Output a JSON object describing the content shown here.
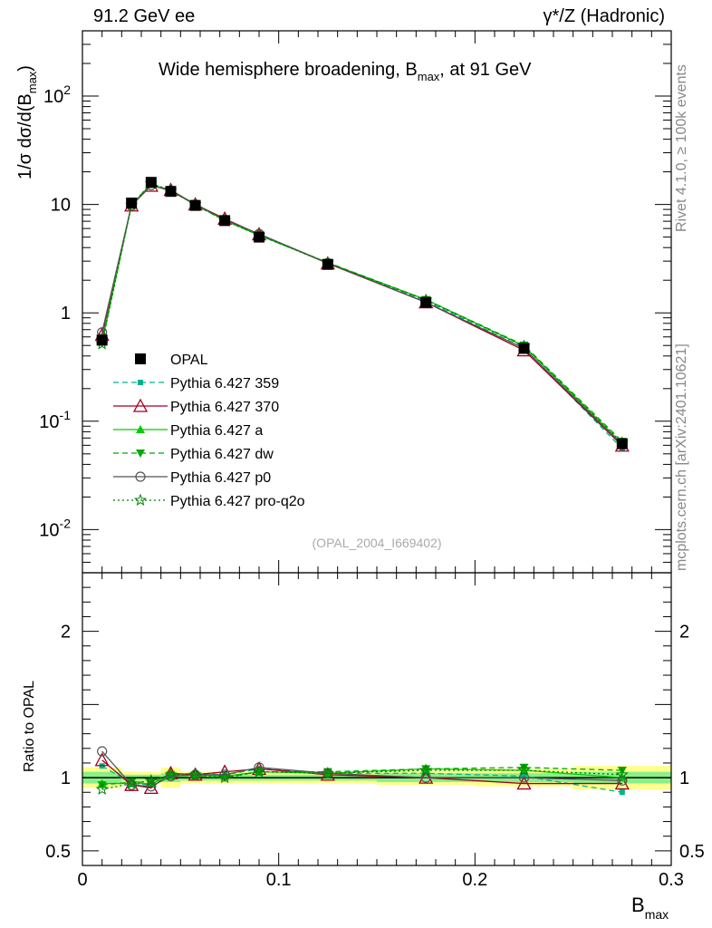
{
  "header": {
    "left": "91.2 GeV ee",
    "right": "γ*/Z (Hadronic)"
  },
  "side": {
    "rivet": "Rivet 4.1.0, ≥ 100k events",
    "mcplots": "mcplots.cern.ch [arXiv:2401.10621]"
  },
  "chart_data": {
    "type": "line",
    "title": "Wide hemisphere broadening, B_max, at 91 GeV",
    "analysis_tag": "(OPAL_2004_I669402)",
    "xlabel": "B_max",
    "ylabel": "1/σ  dσ/d(B_max)",
    "ratio_ylabel": "Ratio to OPAL",
    "xlim": [
      0.0,
      0.3
    ],
    "ylim": [
      0.004,
      400
    ],
    "ratio_ylim": [
      0.4,
      2.4
    ],
    "x_ticks": [
      "0",
      "0.1",
      "0.2",
      "0.3"
    ],
    "y_ticks": [
      "10^-2",
      "10^-1",
      "1",
      "10",
      "10^2"
    ],
    "ratio_ticks": [
      "0.5",
      "1",
      "2"
    ],
    "bin_edges": [
      0.0,
      0.02,
      0.03,
      0.04,
      0.05,
      0.065,
      0.08,
      0.1,
      0.15,
      0.2,
      0.25,
      0.3
    ],
    "x": [
      0.01,
      0.025,
      0.035,
      0.045,
      0.0575,
      0.0725,
      0.09,
      0.125,
      0.175,
      0.225,
      0.275
    ],
    "data": {
      "name": "OPAL",
      "values": [
        0.56,
        10.3,
        16.0,
        13.2,
        9.8,
        7.1,
        5.0,
        2.8,
        1.25,
        0.47,
        0.062
      ],
      "band_yellow": [
        0.07,
        0.04,
        0.04,
        0.07,
        0.04,
        0.04,
        0.04,
        0.04,
        0.05,
        0.06,
        0.08
      ],
      "band_green": [
        0.04,
        0.02,
        0.02,
        0.03,
        0.02,
        0.02,
        0.02,
        0.02,
        0.03,
        0.03,
        0.04
      ]
    },
    "series": [
      {
        "name": "Pythia 6.427 359",
        "style": "dashed",
        "marker": "square-small",
        "color": "#00b38f",
        "ratio": [
          1.08,
          0.96,
          0.95,
          1.02,
          1.03,
          1.02,
          1.06,
          1.03,
          1.03,
          1.01,
          0.9
        ]
      },
      {
        "name": "Pythia 6.427 370",
        "style": "solid",
        "marker": "triangle-open",
        "color": "#a0001e",
        "ratio": [
          1.12,
          0.95,
          0.93,
          1.03,
          1.02,
          1.04,
          1.06,
          1.02,
          1.0,
          0.96,
          0.96
        ]
      },
      {
        "name": "Pythia 6.427 a",
        "style": "solid",
        "marker": "triangle-filled",
        "color": "#00cc00",
        "ratio": [
          0.96,
          0.96,
          0.96,
          1.01,
          1.02,
          1.01,
          1.04,
          1.03,
          1.06,
          1.05,
          1.0
        ]
      },
      {
        "name": "Pythia 6.427 dw",
        "style": "dashed",
        "marker": "triangle-down",
        "color": "#00a800",
        "ratio": [
          0.95,
          0.97,
          0.97,
          1.02,
          1.01,
          1.0,
          1.04,
          1.04,
          1.06,
          1.07,
          1.05
        ]
      },
      {
        "name": "Pythia 6.427 p0",
        "style": "solid",
        "marker": "circle-open",
        "color": "#555555",
        "ratio": [
          1.18,
          0.95,
          0.94,
          1.01,
          1.02,
          1.02,
          1.07,
          1.03,
          1.0,
          1.0,
          0.98
        ]
      },
      {
        "name": "Pythia 6.427 pro-q2o",
        "style": "dotted",
        "marker": "star-open",
        "color": "#008000",
        "ratio": [
          0.92,
          0.96,
          0.98,
          1.02,
          1.02,
          1.0,
          1.04,
          1.03,
          1.05,
          1.05,
          1.02
        ]
      }
    ]
  }
}
